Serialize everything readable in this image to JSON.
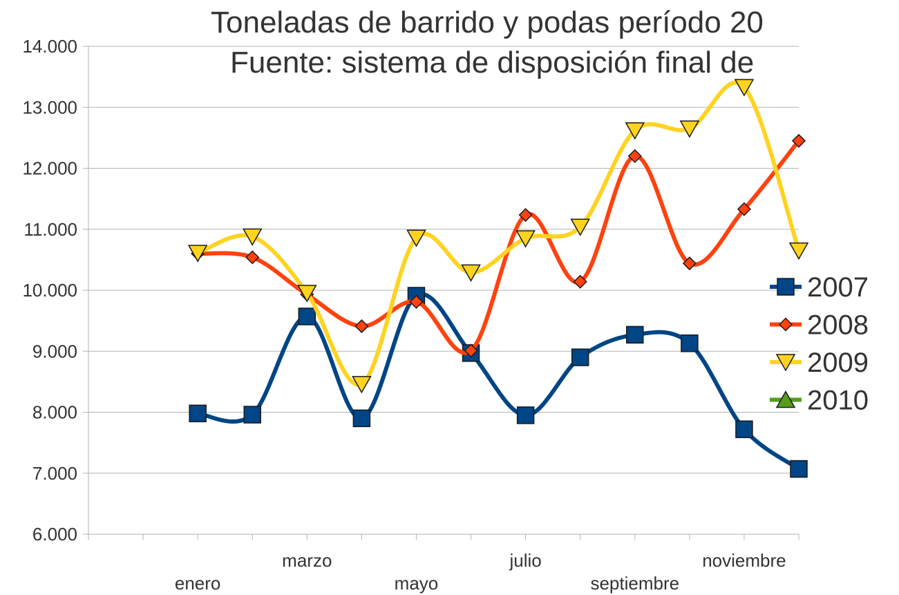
{
  "chart_data": {
    "type": "line",
    "title": "Toneladas de barrido y podas período 20",
    "subtitle": "Fuente: sistema de disposición final de",
    "categories": [
      null,
      null,
      "enero",
      null,
      "marzo",
      null,
      "mayo",
      null,
      "julio",
      null,
      "septiembre",
      null,
      "noviembre",
      null
    ],
    "series": [
      {
        "name": "2007",
        "color": "#004586",
        "marker": "square",
        "values": [
          null,
          null,
          7980,
          7960,
          9570,
          7900,
          9910,
          8970,
          7950,
          8900,
          9270,
          9130,
          7720,
          7070
        ]
      },
      {
        "name": "2008",
        "color": "#ff420e",
        "marker": "diamond",
        "values": [
          null,
          null,
          10600,
          10540,
          9930,
          9410,
          9810,
          9010,
          11235,
          10140,
          12200,
          10440,
          11330,
          12450
        ]
      },
      {
        "name": "2009",
        "color": "#ffd320",
        "marker": "triangle-down",
        "values": [
          null,
          null,
          10610,
          10880,
          9955,
          8460,
          10860,
          10290,
          10850,
          11040,
          12620,
          12650,
          13330,
          10650
        ]
      },
      {
        "name": "2010",
        "color": "#579d1c",
        "marker": "triangle-up",
        "values": [
          null,
          null,
          null,
          null,
          null,
          null,
          null,
          null,
          null,
          null,
          null,
          null,
          null,
          null
        ]
      }
    ],
    "ylim": [
      6000,
      14000
    ],
    "yticks": [
      {
        "value": 6000,
        "label": "6.000"
      },
      {
        "value": 7000,
        "label": "7.000"
      },
      {
        "value": 8000,
        "label": "8.000"
      },
      {
        "value": 9000,
        "label": "9.000"
      },
      {
        "value": 10000,
        "label": "10.000"
      },
      {
        "value": 11000,
        "label": "11.000"
      },
      {
        "value": 12000,
        "label": "12.000"
      },
      {
        "value": 13000,
        "label": "13.000"
      },
      {
        "value": 14000,
        "label": "14.000"
      }
    ],
    "grid": true,
    "smooth": true,
    "legend": "right"
  }
}
